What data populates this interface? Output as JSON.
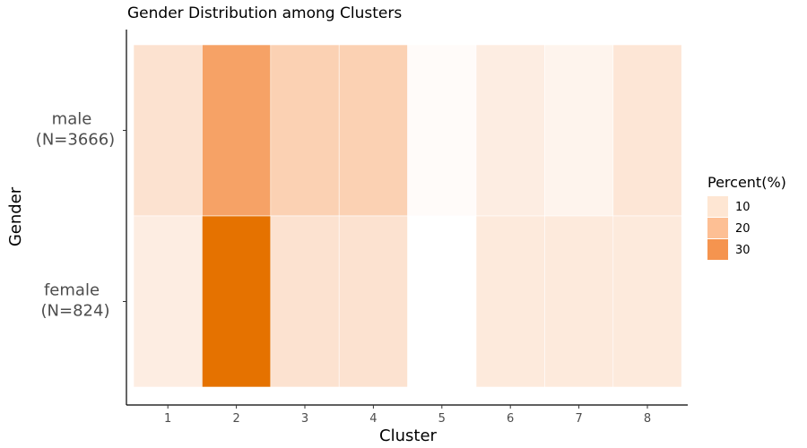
{
  "chart_data": {
    "type": "heatmap",
    "title": "Gender Distribution among Clusters",
    "xlabel": "Cluster",
    "ylabel": "Gender",
    "categories": [
      "1",
      "2",
      "3",
      "4",
      "5",
      "6",
      "7",
      "8"
    ],
    "rows": [
      {
        "label_line1": "male",
        "label_line2": "(N=3666)",
        "values": [
          8,
          26,
          13,
          13,
          1,
          5,
          3,
          7
        ]
      },
      {
        "label_line1": "female",
        "label_line2": "(N=824)",
        "values": [
          5,
          41,
          8,
          8,
          0,
          6,
          6,
          6
        ]
      }
    ],
    "legend": {
      "title": "Percent(%)",
      "entries": [
        {
          "label": "10",
          "color": "#fee6d3"
        },
        {
          "label": "20",
          "color": "#fdbf94"
        },
        {
          "label": "30",
          "color": "#f5944f"
        }
      ],
      "position": "right"
    },
    "colors": {
      "low": "#ffffff",
      "mid": "#f5944f",
      "high": "#e57200"
    }
  }
}
